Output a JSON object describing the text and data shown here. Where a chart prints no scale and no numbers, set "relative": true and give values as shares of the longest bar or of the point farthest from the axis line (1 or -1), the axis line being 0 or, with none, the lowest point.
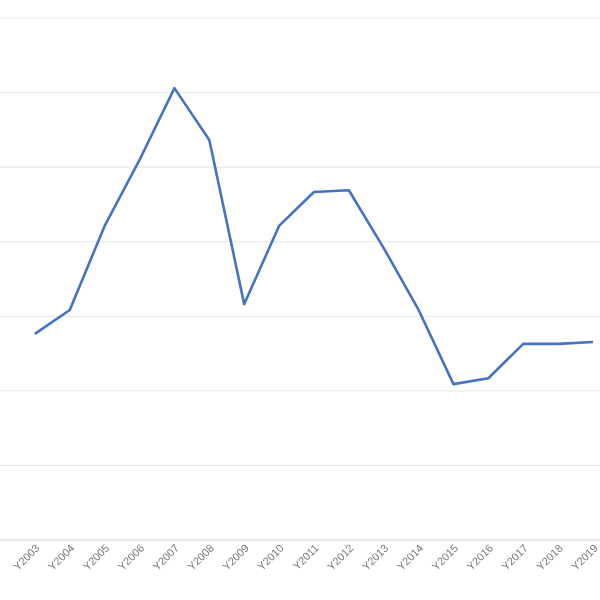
{
  "chart_data": {
    "type": "line",
    "relative": true,
    "grid": "y",
    "marker": "none",
    "line_style": "solid",
    "categories": [
      "Y2003",
      "Y2004",
      "Y2005",
      "Y2006",
      "Y2007",
      "Y2008",
      "Y2009",
      "Y2010",
      "Y2011",
      "Y2012",
      "Y2013",
      "Y2014",
      "Y2015",
      "Y2016",
      "Y2017",
      "Y2018",
      "Y2019"
    ],
    "series": [
      {
        "color": "#4472c4",
        "values": [
          0.456,
          0.509,
          0.695,
          0.841,
          1,
          0.885,
          0.522,
          0.695,
          0.77,
          0.774,
          0.646,
          0.509,
          0.345,
          0.358,
          0.434,
          0.434,
          0.438
        ]
      }
    ]
  }
}
